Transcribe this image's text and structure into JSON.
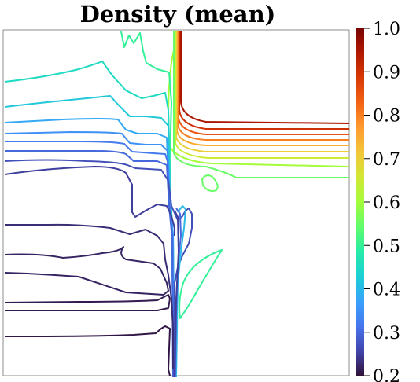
{
  "chart_data": {
    "type": "contour",
    "title": "Density (mean)",
    "xlabel": "",
    "ylabel": "",
    "colorbar": {
      "label": "",
      "range": [
        0.2,
        1.0
      ],
      "ticks": [
        "1.0",
        "0.9",
        "0.8",
        "0.7",
        "0.6",
        "0.5",
        "0.4",
        "0.3",
        "0.2"
      ],
      "colormap": "turbo"
    },
    "contour_levels": [
      0.25,
      0.3,
      0.35,
      0.4,
      0.45,
      0.5,
      0.55,
      0.6,
      0.65,
      0.7,
      0.75,
      0.8,
      0.85,
      0.9,
      0.95
    ],
    "grid": false,
    "legend": "colorbar-right"
  },
  "colormap_stops": [
    "#30123b",
    "#4145ab",
    "#4675ed",
    "#39a2fc",
    "#1bcfd4",
    "#24eca6",
    "#61fc6c",
    "#a4fc3b",
    "#d1e834",
    "#f3c63a",
    "#fe9b2d",
    "#f36315",
    "#d93806",
    "#b11901",
    "#7a0402"
  ]
}
